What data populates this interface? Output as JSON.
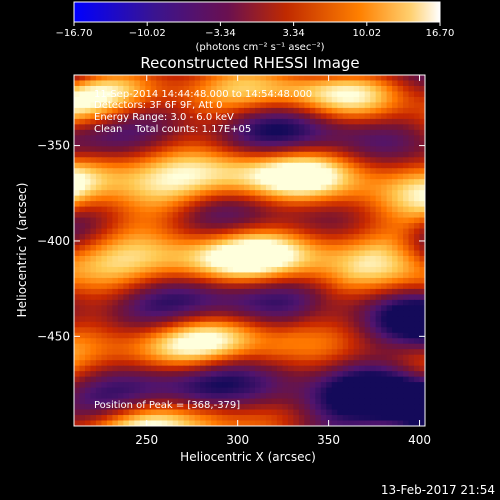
{
  "chart_data": {
    "type": "heatmap",
    "title": "Reconstructed RHESSI Image",
    "xlabel": "Heliocentric X (arcsec)",
    "ylabel": "Heliocentric Y (arcsec)",
    "xlim": [
      210,
      403
    ],
    "ylim": [
      -497,
      -313
    ],
    "x_ticks": [
      "250",
      "300",
      "350",
      "400"
    ],
    "x_tick_values": [
      250,
      300,
      350,
      400
    ],
    "y_ticks": [
      "−350",
      "−400",
      "−450"
    ],
    "y_tick_values": [
      -350,
      -400,
      -450
    ],
    "colorbar": {
      "range": [
        -16.7,
        16.7
      ],
      "tick_labels": [
        "−16.70",
        "−10.02",
        "−3.34",
        "3.34",
        "10.02",
        "16.70"
      ],
      "tick_values": [
        -16.7,
        -10.02,
        -3.34,
        3.34,
        10.02,
        16.7
      ],
      "unit_label": "(photons cm⁻² s⁻¹ asec⁻²)",
      "colors": [
        "#0000ff",
        "#5a1a8a",
        "#c02a00",
        "#ff7f00",
        "#ffffff"
      ]
    },
    "annotations": {
      "time_range": "11-Sep-2014 14:44:48.000 to 14:54:48.000",
      "detectors": "Detectors: 3F 6F 9F, Att 0",
      "energy": "Energy Range: 3.0 - 6.0 keV",
      "clean": "Clean    Total counts: 1.17E+05",
      "peak": "Position of Peak = [368,-379]"
    },
    "peak": [
      368,
      -379
    ],
    "grid": false
  },
  "footer": {
    "timestamp": "13-Feb-2017 21:54"
  }
}
